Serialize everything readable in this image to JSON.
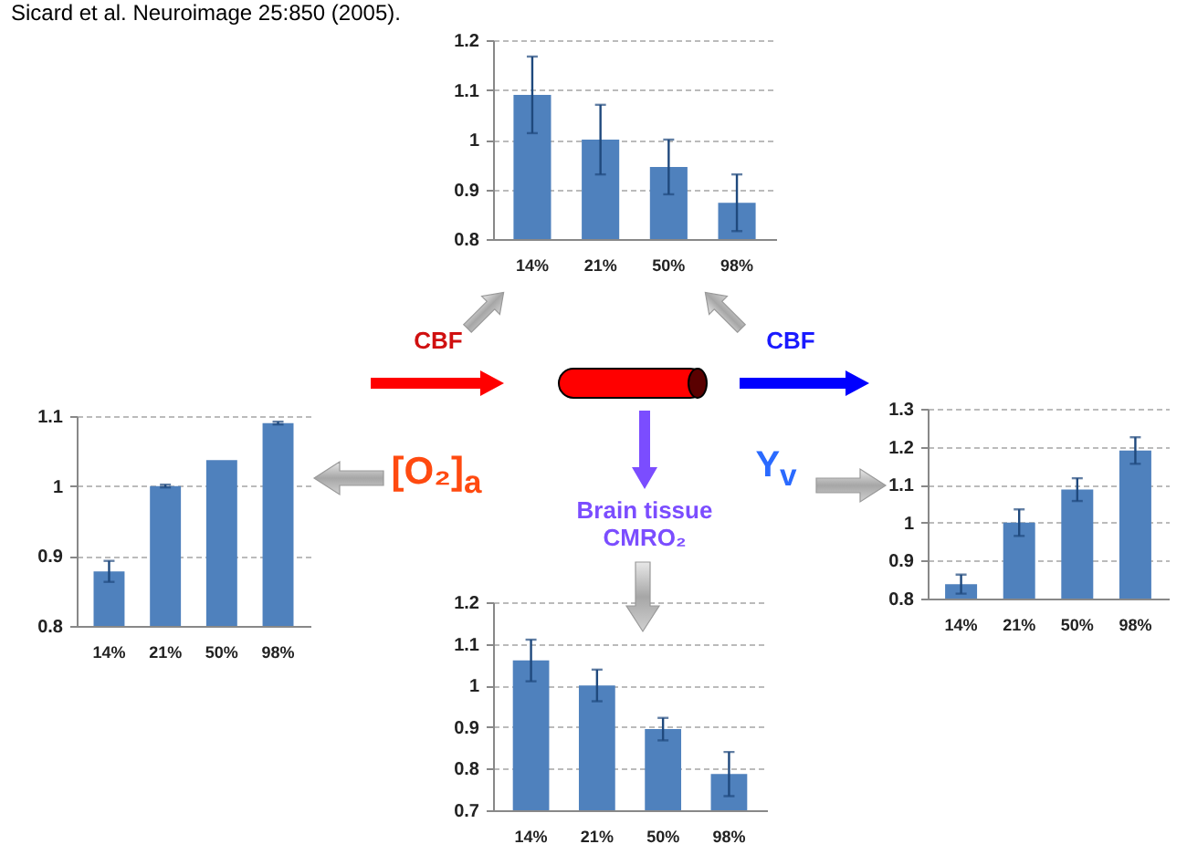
{
  "chart_data": [
    {
      "type": "bar",
      "categories": [
        "14%",
        "21%",
        "50%",
        "98%"
      ],
      "values": [
        1.09,
        1.0,
        0.945,
        0.873
      ],
      "errors": [
        0.077,
        0.07,
        0.055,
        0.057
      ],
      "color": "#4f81bd",
      "ylim": [
        0.8,
        1.2
      ],
      "yticks": [
        0.8,
        0.9,
        1,
        1.1,
        1.2
      ],
      "grid": "y",
      "annotations": [
        "Sicard et al. Neuroimage 25:850 (2005).",
        "CBF",
        "CBF"
      ]
    },
    {
      "type": "bar",
      "categories": [
        "14%",
        "21%",
        "50%",
        "98%"
      ],
      "values": [
        0.878,
        1.0,
        1.037,
        1.09
      ],
      "errors": [
        0.015,
        0.002,
        null,
        0.002
      ],
      "color": "#4f81bd",
      "ylim": [
        0.8,
        1.1
      ],
      "yticks": [
        0.8,
        0.9,
        1,
        1.1
      ],
      "grid": "y",
      "annotations": [
        "[O₂]$_{a}$"
      ]
    },
    {
      "type": "bar",
      "categories": [
        "14%",
        "21%",
        "50%",
        "98%"
      ],
      "values": [
        0.838,
        1.0,
        1.087,
        1.19
      ],
      "errors": [
        0.025,
        0.035,
        0.03,
        0.035
      ],
      "color": "#4f81bd",
      "ylim": [
        0.8,
        1.3
      ],
      "yticks": [
        0.8,
        0.9,
        1,
        1.1,
        1.2,
        1.3
      ],
      "grid": "y",
      "annotations": [
        "Y$_{v}$"
      ]
    },
    {
      "type": "bar",
      "categories": [
        "14%",
        "21%",
        "50%",
        "98%"
      ],
      "values": [
        1.06,
        1.0,
        0.895,
        0.787
      ],
      "errors": [
        0.05,
        0.038,
        0.027,
        0.053
      ],
      "color": "#4f81bd",
      "ylim": [
        0.7,
        1.2
      ],
      "yticks": [
        0.7,
        0.8,
        0.9,
        1,
        1.1,
        1.2
      ],
      "grid": "y",
      "annotations": [
        "Brain tissue CMRO₂"
      ]
    }
  ]
}
